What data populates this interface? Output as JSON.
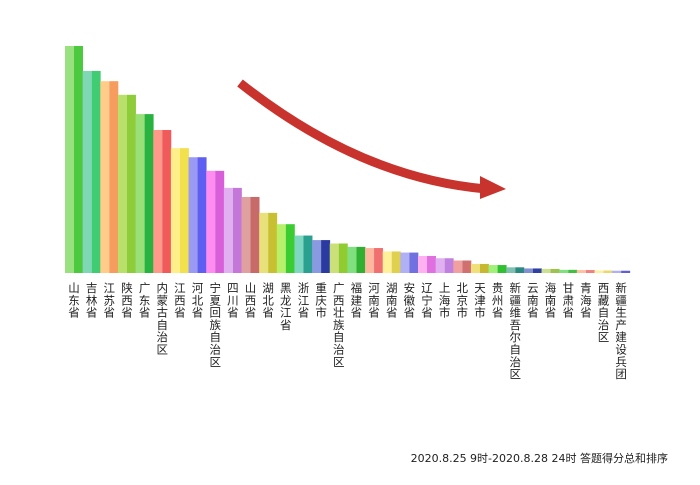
{
  "chart_data": {
    "type": "bar",
    "title": "",
    "xlabel": "",
    "ylabel": "",
    "ylim": [
      0,
      100
    ],
    "grid": false,
    "legend": "none",
    "categories": [
      "山东省",
      "吉林省",
      "江苏省",
      "陕西省",
      "广东省",
      "内蒙古自治区",
      "江西省",
      "河北省",
      "宁夏回族自治区",
      "四川省",
      "山西省",
      "湖北省",
      "黑龙江省",
      "浙江省",
      "重庆市",
      "广西壮族自治区",
      "福建省",
      "河南省",
      "湖南省",
      "安徽省",
      "辽宁省",
      "上海市",
      "北京市",
      "天津市",
      "贵州省",
      "新疆维吾尔自治区",
      "云南省",
      "海南省",
      "甘肃省",
      "青海省",
      "西藏自治区",
      "新疆生产建设兵团"
    ],
    "values": [
      100,
      89,
      84.5,
      78.5,
      70,
      63,
      55,
      51,
      45,
      37.5,
      33.5,
      26.5,
      21.5,
      16.5,
      14.5,
      13,
      11.5,
      11,
      9.5,
      9,
      7.5,
      6.5,
      5.5,
      4,
      3.5,
      2.5,
      2,
      1.8,
      1.4,
      1.3,
      1.1,
      1
    ],
    "bar_colors": [
      [
        "#99e07e",
        "#4dc940"
      ],
      [
        "#7fd7b5",
        "#40cc73"
      ],
      [
        "#ffcc8a",
        "#f59c5e"
      ],
      [
        "#b8e06a",
        "#8fcc3a"
      ],
      [
        "#99e078",
        "#28b340"
      ],
      [
        "#ff9a8a",
        "#f05a5a"
      ],
      [
        "#ffef8a",
        "#f2e04c"
      ],
      [
        "#9a9af5",
        "#5e5ef2"
      ],
      [
        "#ff8cf0",
        "#d95ed9"
      ],
      [
        "#e0b0f0",
        "#c577d9"
      ],
      [
        "#e0a0a0",
        "#c86a6a"
      ],
      [
        "#e8e07a",
        "#c8c030"
      ],
      [
        "#b8f06a",
        "#3acc30"
      ],
      [
        "#7fd7c0",
        "#2aa090"
      ],
      [
        "#8a9ae0",
        "#2a3aa0"
      ],
      [
        "#cce07a",
        "#90cc30"
      ],
      [
        "#80e080",
        "#30b030"
      ],
      [
        "#ffb8a0",
        "#f07070"
      ],
      [
        "#fff09a",
        "#e0d050"
      ],
      [
        "#b0b0f5",
        "#7070e0"
      ],
      [
        "#ffb0f0",
        "#e070e0"
      ],
      [
        "#e0b0f0",
        "#c080e0"
      ],
      [
        "#f0a0a0",
        "#d07070"
      ],
      [
        "#f0e07a",
        "#c8b830"
      ],
      [
        "#a0f07a",
        "#30c030"
      ],
      [
        "#80c0b0",
        "#2a8a80"
      ],
      [
        "#8090d0",
        "#3040a0"
      ],
      [
        "#cce090",
        "#a0c050"
      ],
      [
        "#80e080",
        "#40c040"
      ],
      [
        "#ffc0a0",
        "#f08080"
      ],
      [
        "#fff0a0",
        "#e8d870"
      ],
      [
        "#b0b0f0",
        "#6060d0"
      ]
    ],
    "annotations": [
      "2020.8.25 9时-2020.8.28 24时 答题得分总和排序"
    ],
    "arrow_color": "#c8332e"
  }
}
